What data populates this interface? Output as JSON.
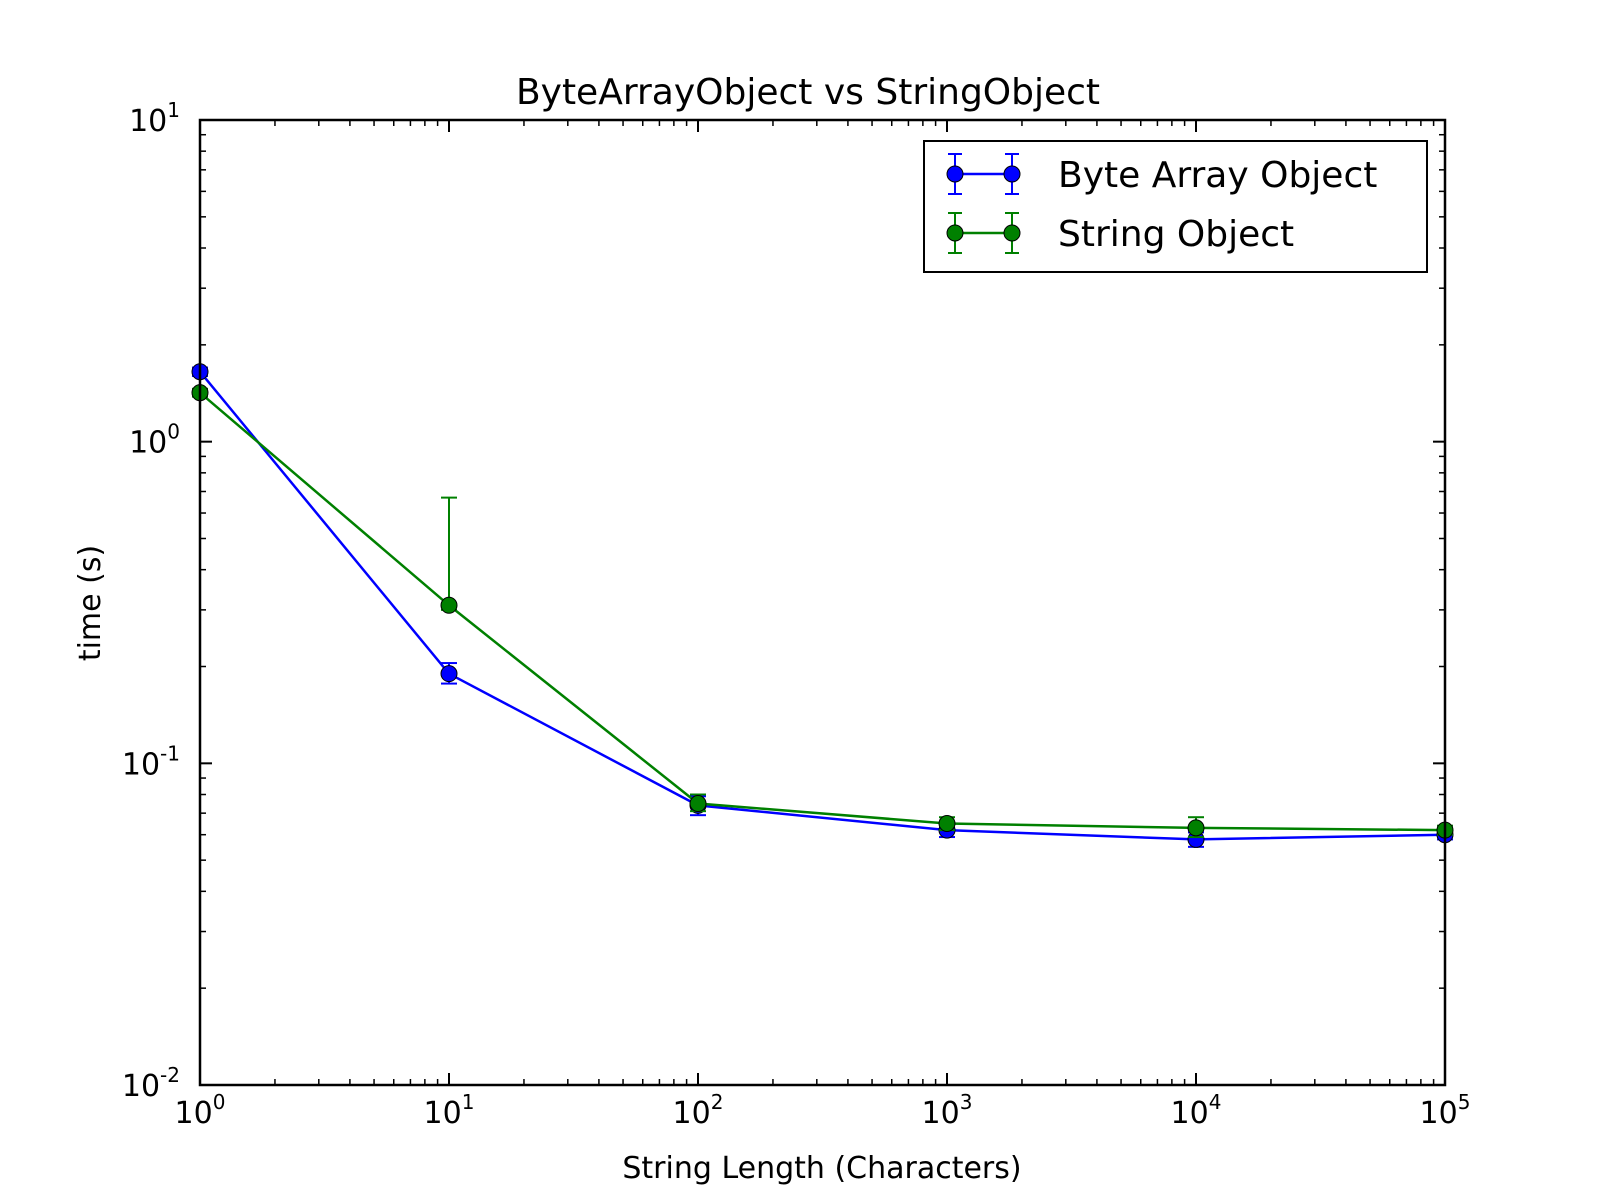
{
  "chart_data": {
    "type": "line",
    "title": "ByteArrayObject vs StringObject",
    "xlabel": "String Length (Characters)",
    "ylabel": "time (s)",
    "x_scale": "log",
    "y_scale": "log",
    "xlim": [
      1,
      100000
    ],
    "ylim": [
      0.01,
      10
    ],
    "x_ticks": [
      {
        "base": "10",
        "exp": "0",
        "value": 1
      },
      {
        "base": "10",
        "exp": "1",
        "value": 10
      },
      {
        "base": "10",
        "exp": "2",
        "value": 100
      },
      {
        "base": "10",
        "exp": "3",
        "value": 1000
      },
      {
        "base": "10",
        "exp": "4",
        "value": 10000
      },
      {
        "base": "10",
        "exp": "5",
        "value": 100000
      }
    ],
    "y_ticks": [
      {
        "base": "10",
        "exp": "-2",
        "value": 0.01
      },
      {
        "base": "10",
        "exp": "-1",
        "value": 0.1
      },
      {
        "base": "10",
        "exp": "0",
        "value": 1
      },
      {
        "base": "10",
        "exp": "1",
        "value": 10
      }
    ],
    "grid": false,
    "legend_position": "top-right",
    "series": [
      {
        "name": "Byte Array Object",
        "color": "#0000ff",
        "x": [
          1,
          10,
          100,
          1000,
          10000,
          100000
        ],
        "y": [
          1.65,
          0.19,
          0.074,
          0.062,
          0.058,
          0.06
        ],
        "err_low": [
          1.6,
          0.177,
          0.069,
          0.059,
          0.055,
          0.058
        ],
        "err_high": [
          1.7,
          0.205,
          0.079,
          0.065,
          0.061,
          0.062
        ]
      },
      {
        "name": "String Object",
        "color": "#008000",
        "x": [
          1,
          10,
          100,
          1000,
          10000,
          100000
        ],
        "y": [
          1.42,
          0.31,
          0.075,
          0.065,
          0.063,
          0.062
        ],
        "err_low": [
          1.38,
          0.3,
          0.071,
          0.062,
          0.059,
          0.06
        ],
        "err_high": [
          1.46,
          0.67,
          0.08,
          0.068,
          0.068,
          0.064
        ]
      }
    ]
  }
}
